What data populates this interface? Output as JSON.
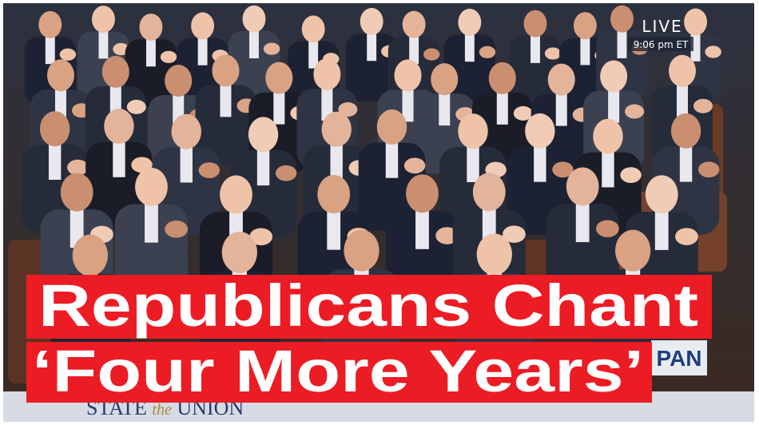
{
  "broadcast": {
    "live": "LIVE",
    "time": "9:06 pm ET",
    "network": "PAN",
    "banner": [
      "STATE",
      "the",
      "UNION"
    ]
  },
  "headline": {
    "lines": [
      "Republicans Chant",
      "‘Four More Years’"
    ]
  }
}
